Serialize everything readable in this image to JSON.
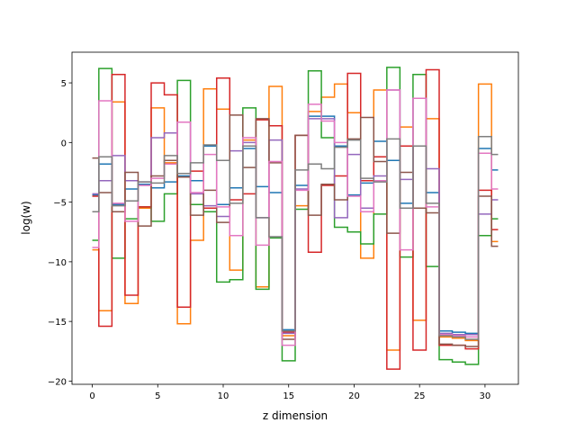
{
  "chart_data": {
    "type": "step",
    "x_label": "z dimension",
    "y_label": "log(w)",
    "x": [
      0,
      1,
      2,
      3,
      4,
      5,
      6,
      7,
      8,
      9,
      10,
      11,
      12,
      13,
      14,
      15,
      16,
      17,
      18,
      19,
      20,
      21,
      22,
      23,
      24,
      25,
      26,
      27,
      28,
      29,
      30,
      31
    ],
    "xlim": [
      -1.55,
      32.55
    ],
    "ylim": [
      -20.27,
      7.57
    ],
    "xticks": [
      0,
      5,
      10,
      15,
      20,
      25,
      30
    ],
    "yticks": [
      {
        "value": -20,
        "label": "−20"
      },
      {
        "value": -15,
        "label": "−15"
      },
      {
        "value": -10,
        "label": "−10"
      },
      {
        "value": -5,
        "label": "−5"
      },
      0,
      5
    ],
    "series": [
      {
        "color": "#1f77b4",
        "values": [
          -4.4,
          -1.8,
          -5.2,
          -3.9,
          -3.5,
          -3.8,
          -3.3,
          -2.8,
          -3.2,
          -0.3,
          -5.2,
          -3.8,
          -0.5,
          -3.7,
          -4.2,
          -15.7,
          -3.6,
          2.2,
          2.2,
          -0.3,
          -4.4,
          -3.4,
          0.1,
          -1.5,
          -5.1,
          -0.3,
          -4.2,
          -15.8,
          -15.9,
          -16.0,
          -0.5,
          -2.3
        ]
      },
      {
        "color": "#ff7f0e",
        "values": [
          -9.0,
          -14.1,
          3.4,
          -13.5,
          -5.5,
          2.9,
          -1.7,
          -15.2,
          -8.2,
          4.5,
          2.8,
          -10.7,
          0.2,
          -12.1,
          4.7,
          -16.2,
          -5.3,
          2.6,
          3.8,
          4.9,
          2.5,
          -9.7,
          4.4,
          -17.4,
          1.3,
          -14.9,
          2.0,
          -16.3,
          -16.4,
          -16.6,
          4.9,
          -8.3
        ]
      },
      {
        "color": "#2ca02c",
        "values": [
          -8.2,
          6.2,
          -9.7,
          -6.4,
          -5.4,
          -6.6,
          -4.3,
          5.2,
          -5.2,
          -5.8,
          -11.7,
          -11.5,
          2.9,
          -12.3,
          -8.0,
          -18.3,
          -5.6,
          6.0,
          0.4,
          -7.1,
          -7.5,
          -8.5,
          -6.0,
          6.3,
          -9.6,
          5.7,
          -10.4,
          -18.2,
          -18.4,
          -18.6,
          -7.8,
          -6.4
        ]
      },
      {
        "color": "#d62728",
        "values": [
          -4.5,
          -15.4,
          5.7,
          -12.8,
          -5.4,
          5.0,
          4.0,
          -13.8,
          -2.4,
          -5.5,
          5.4,
          -4.8,
          -4.3,
          1.9,
          1.4,
          -15.9,
          0.6,
          -9.2,
          -3.6,
          -2.8,
          5.8,
          -3.2,
          -1.2,
          -19.0,
          -0.3,
          -17.4,
          6.1,
          -17.0,
          -17.0,
          -17.3,
          -4.0,
          -7.3
        ]
      },
      {
        "color": "#9467bd",
        "values": [
          -4.3,
          -3.2,
          -1.1,
          -3.2,
          -3.3,
          0.4,
          0.8,
          1.7,
          -4.3,
          -5.3,
          -6.2,
          -0.7,
          0,
          -6.3,
          0.2,
          -16.0,
          -3.9,
          2.0,
          2.0,
          -6.3,
          -1.0,
          -5.5,
          -2.8,
          4.4,
          -3.1,
          3.7,
          -2.2,
          -16.0,
          -16.1,
          -16.1,
          -6.0,
          -4.8
        ]
      },
      {
        "color": "#8c564b",
        "values": [
          -1.3,
          -4.2,
          -5.8,
          -2.5,
          -7.0,
          -2.8,
          -1.5,
          -2.9,
          -6.1,
          -4.0,
          -6.7,
          2.3,
          -2.1,
          2.0,
          -1.7,
          -16.5,
          0.6,
          -6.1,
          -3.5,
          -4.8,
          0.3,
          2.1,
          -1.6,
          -7.6,
          -2.5,
          -5.5,
          -5.9,
          -16.9,
          -17.0,
          -17.1,
          -4.5,
          -8.7
        ]
      },
      {
        "color": "#e377c2",
        "values": [
          -8.8,
          3.5,
          -5.1,
          -6.6,
          -3.6,
          -3.0,
          -1.8,
          1.7,
          -4.2,
          -1.0,
          -5.4,
          -7.8,
          0.4,
          -8.6,
          -1.6,
          -17.0,
          -4.0,
          3.2,
          1.8,
          0,
          -4.5,
          -5.8,
          -3.2,
          4.4,
          -9.0,
          3.7,
          -5.4,
          -16.1,
          -16.2,
          -16.3,
          -0.9,
          -3.9
        ]
      },
      {
        "color": "#7f7f7f",
        "values": [
          -5.8,
          -1.2,
          -5.3,
          -4.9,
          -3.3,
          -3.4,
          -1.1,
          -2.6,
          -1.7,
          -0.2,
          -1.5,
          -5.1,
          -0.3,
          -6.3,
          -7.9,
          -15.8,
          -2.3,
          -1.8,
          -2.2,
          -0.4,
          0.2,
          -3.0,
          -3.3,
          0.3,
          -5.5,
          -0.3,
          -5.1,
          -16.2,
          -16.3,
          -16.5,
          0.5,
          -1.0
        ]
      }
    ]
  }
}
